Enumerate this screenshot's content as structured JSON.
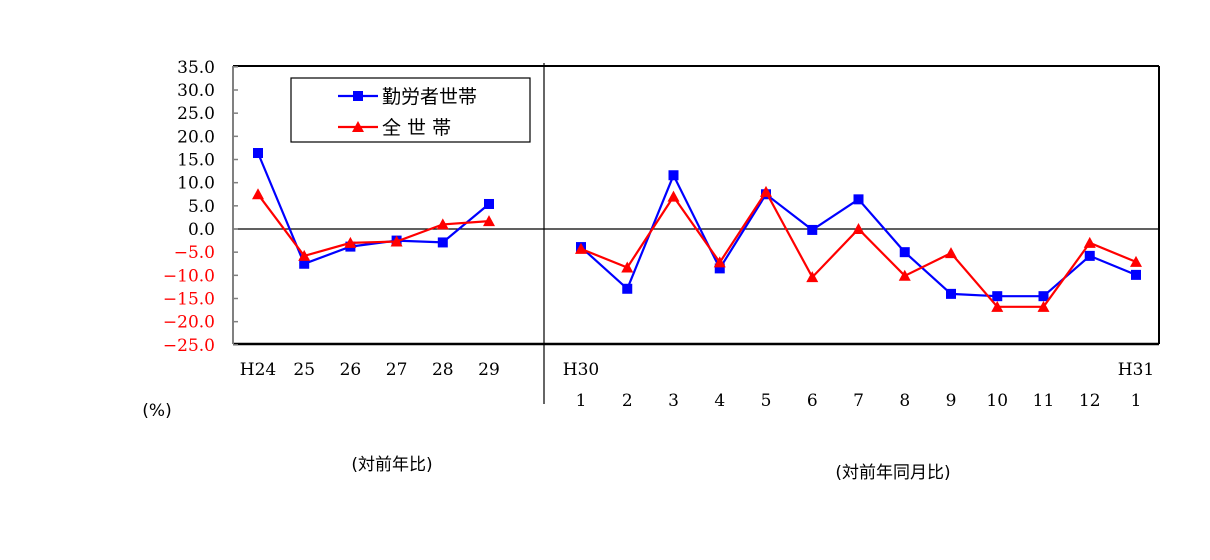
{
  "chart_data": {
    "type": "line",
    "title": "",
    "ylabel": "(%)",
    "ylim": [
      -25,
      35
    ],
    "yticks": [
      "35.0",
      "30.0",
      "25.0",
      "20.0",
      "15.0",
      "10.0",
      "5.0",
      "0.0",
      "-5.0",
      "-10.0",
      "-15.0",
      "-20.0",
      "-25.0"
    ],
    "ytick_values": [
      35,
      30,
      25,
      20,
      15,
      10,
      5,
      0,
      -5,
      -10,
      -15,
      -20,
      -25
    ],
    "negative_tick_color": "#ff0000",
    "positive_tick_color": "#000000",
    "grid": false,
    "legend_position": "upper-left-inside",
    "legend": [
      {
        "label": "勤労者世帯",
        "color": "#0000ff",
        "marker": "square"
      },
      {
        "label": "全 世 帯",
        "color": "#ff0000",
        "marker": "triangle"
      }
    ],
    "panels": [
      {
        "name": "annual",
        "caption": "(対前年比)",
        "categories": [
          "H24",
          "25",
          "26",
          "27",
          "28",
          "29"
        ],
        "series": [
          {
            "name": "勤労者世帯",
            "color": "#0000ff",
            "marker": "square",
            "values": [
              16.4,
              -7.5,
              -3.8,
              -2.5,
              -2.9,
              5.4
            ]
          },
          {
            "name": "全 世 帯",
            "color": "#ff0000",
            "marker": "triangle",
            "values": [
              7.5,
              -5.8,
              -3.0,
              -2.7,
              1.0,
              1.7
            ]
          }
        ]
      },
      {
        "name": "monthly",
        "caption": "(対前年同月比)",
        "year_labels": [
          {
            "index": 0,
            "label": "H30"
          },
          {
            "index": 12,
            "label": "H31"
          }
        ],
        "categories": [
          "1",
          "2",
          "3",
          "4",
          "5",
          "6",
          "7",
          "8",
          "9",
          "10",
          "11",
          "12",
          "1"
        ],
        "series": [
          {
            "name": "勤労者世帯",
            "color": "#0000ff",
            "marker": "square",
            "values": [
              -3.9,
              -12.9,
              11.6,
              -8.5,
              7.5,
              -0.2,
              6.4,
              -5.0,
              -14.0,
              -14.5,
              -14.5,
              -5.8,
              -9.9
            ]
          },
          {
            "name": "全 世 帯",
            "color": "#ff0000",
            "marker": "triangle",
            "values": [
              -4.3,
              -8.3,
              7.0,
              -7.2,
              8.0,
              -10.4,
              0.0,
              -10.1,
              -5.2,
              -16.8,
              -16.8,
              -3.0,
              -7.1
            ]
          }
        ]
      }
    ]
  }
}
